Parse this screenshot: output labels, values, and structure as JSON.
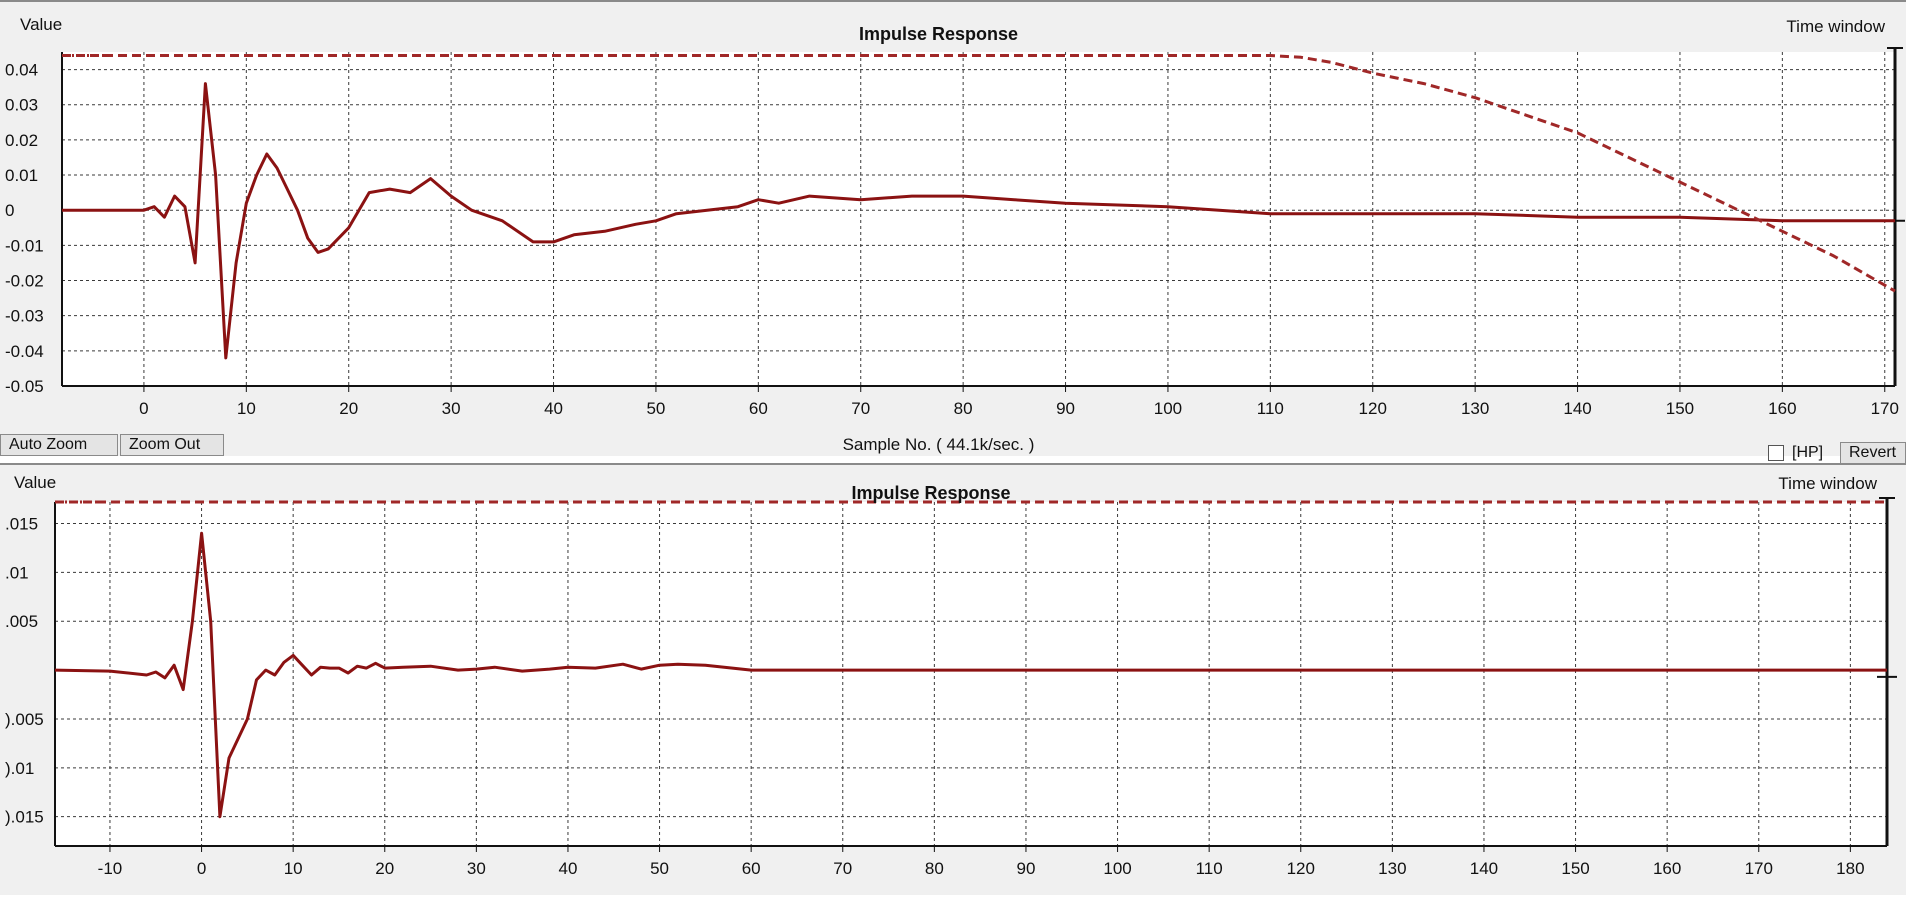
{
  "colors": {
    "curve": "#8b1212",
    "window": "#a02828",
    "grid": "#3a3a3a",
    "panel_bg": "#f0f0f0",
    "plot_bg": "#ffffff"
  },
  "controls": {
    "auto_zoom_label": "Auto Zoom",
    "zoom_out_label": "Zoom Out",
    "hp_label": "[HP]",
    "revert_label": "Revert"
  },
  "chart_data": [
    {
      "type": "line",
      "title": "Impulse Response",
      "ylabel": "Value",
      "xlabel": "Sample No. ( 44.1k/sec. )",
      "legend_label": "Time window",
      "xlim": [
        -8,
        171
      ],
      "ylim": [
        -0.05,
        0.045
      ],
      "x_ticks": [
        0,
        10,
        20,
        30,
        40,
        50,
        60,
        70,
        80,
        90,
        100,
        110,
        120,
        130,
        140,
        150,
        160,
        170
      ],
      "y_ticks": [
        0.04,
        0.03,
        0.02,
        0.01,
        0,
        -0.01,
        -0.02,
        -0.03,
        -0.04,
        -0.05
      ],
      "y_tick_labels": [
        "0.04",
        "0.03",
        "0.02",
        "0.01",
        "0",
        "-0.01",
        "-0.02",
        "-0.03",
        "-0.04",
        "-0.05"
      ],
      "grid": true,
      "series": [
        {
          "style": "solid",
          "x": [
            -8,
            0,
            1,
            2,
            3,
            4,
            5,
            6,
            7,
            8,
            9,
            10,
            11,
            12,
            13,
            14,
            15,
            16,
            17,
            18,
            19,
            20,
            22,
            24,
            26,
            28,
            30,
            32,
            35,
            38,
            40,
            42,
            45,
            48,
            50,
            52,
            55,
            58,
            60,
            62,
            65,
            70,
            75,
            80,
            85,
            90,
            100,
            110,
            120,
            130,
            140,
            150,
            160,
            171
          ],
          "y": [
            0,
            0,
            0.001,
            -0.002,
            0.004,
            0.001,
            -0.015,
            0.036,
            0.01,
            -0.042,
            -0.015,
            0.002,
            0.01,
            0.016,
            0.012,
            0.006,
            0,
            -0.008,
            -0.012,
            -0.011,
            -0.008,
            -0.005,
            0.005,
            0.006,
            0.005,
            0.009,
            0.004,
            0,
            -0.003,
            -0.009,
            -0.009,
            -0.007,
            -0.006,
            -0.004,
            -0.003,
            -0.001,
            0,
            0.001,
            0.003,
            0.002,
            0.004,
            0.003,
            0.004,
            0.004,
            0.003,
            0.002,
            0.001,
            -0.001,
            -0.001,
            -0.001,
            -0.002,
            -0.002,
            -0.003,
            -0.003
          ]
        },
        {
          "style": "dashed",
          "x": [
            -8,
            0,
            20,
            40,
            60,
            80,
            100,
            110,
            113,
            116,
            120,
            125,
            130,
            135,
            140,
            145,
            150,
            155,
            160,
            165,
            171
          ],
          "y": [
            0.044,
            0.044,
            0.044,
            0.044,
            0.044,
            0.044,
            0.044,
            0.044,
            0.0435,
            0.042,
            0.039,
            0.036,
            0.032,
            0.027,
            0.022,
            0.015,
            0.008,
            0.001,
            -0.006,
            -0.013,
            -0.023
          ]
        }
      ]
    },
    {
      "type": "line",
      "title": "Impulse Response",
      "ylabel": "Value",
      "legend_label": "Time window",
      "xlim": [
        -16,
        184
      ],
      "ylim": [
        -0.018,
        0.0172
      ],
      "x_ticks": [
        -10,
        0,
        10,
        20,
        30,
        40,
        50,
        60,
        70,
        80,
        90,
        100,
        110,
        120,
        130,
        140,
        150,
        160,
        170,
        180
      ],
      "y_ticks": [
        0.015,
        0.01,
        0.005,
        -0.005,
        -0.01,
        -0.015
      ],
      "y_tick_labels": [
        ".015",
        ".01",
        ".005",
        ").005",
        ").01",
        ").015"
      ],
      "grid": true,
      "series": [
        {
          "style": "solid",
          "x": [
            -16,
            -10,
            -6,
            -5,
            -4,
            -3,
            -2,
            -1,
            0,
            1,
            2,
            3,
            4,
            5,
            6,
            7,
            8,
            9,
            10,
            11,
            12,
            13,
            14,
            15,
            16,
            17,
            18,
            19,
            20,
            22,
            25,
            28,
            30,
            32,
            35,
            38,
            40,
            43,
            46,
            48,
            50,
            52,
            55,
            60,
            80,
            100,
            120,
            140,
            160,
            184
          ],
          "y": [
            0,
            -0.0001,
            -0.0005,
            -0.0002,
            -0.0008,
            0.0005,
            -0.002,
            0.005,
            0.014,
            0.005,
            -0.015,
            -0.009,
            -0.007,
            -0.005,
            -0.001,
            0,
            -0.0005,
            0.0008,
            0.0015,
            0.0005,
            -0.0005,
            0.0003,
            0.0002,
            0.0002,
            -0.0003,
            0.0004,
            0.0002,
            0.0007,
            0.0002,
            0.0003,
            0.0004,
            0,
            0.0001,
            0.0003,
            -0.0001,
            0.0001,
            0.0003,
            0.0002,
            0.0006,
            0.0001,
            0.0005,
            0.0006,
            0.0005,
            0,
            0,
            0,
            0,
            0,
            0,
            0
          ]
        },
        {
          "style": "dashed",
          "x": [
            -16,
            184
          ],
          "y": [
            0.0172,
            0.0172
          ]
        }
      ]
    }
  ]
}
